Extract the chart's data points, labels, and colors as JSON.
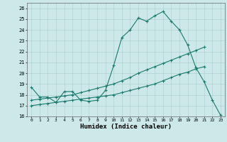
{
  "xlabel": "Humidex (Indice chaleur)",
  "bg_color": "#cce8e8",
  "line_color": "#1a7a6e",
  "xlim": [
    -0.5,
    23.5
  ],
  "ylim": [
    16,
    26.5
  ],
  "yticks": [
    16,
    17,
    18,
    19,
    20,
    21,
    22,
    23,
    24,
    25,
    26
  ],
  "xticks": [
    0,
    1,
    2,
    3,
    4,
    5,
    6,
    7,
    8,
    9,
    10,
    11,
    12,
    13,
    14,
    15,
    16,
    17,
    18,
    19,
    20,
    21,
    22,
    23
  ],
  "line1_x": [
    0,
    1,
    2,
    3,
    4,
    5,
    6,
    7,
    8,
    9,
    10,
    11,
    12,
    13,
    14,
    15,
    16,
    17,
    18,
    19,
    20,
    21,
    22,
    23
  ],
  "line1_y": [
    18.7,
    17.8,
    17.8,
    17.3,
    18.3,
    18.3,
    17.5,
    17.4,
    17.5,
    18.4,
    20.7,
    23.3,
    24.0,
    25.1,
    24.8,
    25.3,
    25.7,
    24.8,
    24.0,
    22.6,
    20.5,
    19.2,
    17.5,
    16.1
  ],
  "line2_x": [
    0,
    1,
    2,
    3,
    4,
    5,
    6,
    7,
    8,
    9,
    10,
    11,
    12,
    13,
    14,
    15,
    16,
    17,
    18,
    19,
    20,
    21
  ],
  "line2_y": [
    17.5,
    17.6,
    17.7,
    17.8,
    17.9,
    18.0,
    18.2,
    18.4,
    18.6,
    18.8,
    19.0,
    19.3,
    19.6,
    20.0,
    20.3,
    20.6,
    20.9,
    21.2,
    21.5,
    21.8,
    22.1,
    22.4
  ],
  "line3_x": [
    0,
    1,
    2,
    3,
    4,
    5,
    6,
    7,
    8,
    9,
    10,
    11,
    12,
    13,
    14,
    15,
    16,
    17,
    18,
    19,
    20,
    21
  ],
  "line3_y": [
    17.0,
    17.1,
    17.2,
    17.3,
    17.4,
    17.5,
    17.6,
    17.7,
    17.8,
    17.9,
    18.0,
    18.2,
    18.4,
    18.6,
    18.8,
    19.0,
    19.3,
    19.6,
    19.9,
    20.1,
    20.4,
    20.6
  ]
}
